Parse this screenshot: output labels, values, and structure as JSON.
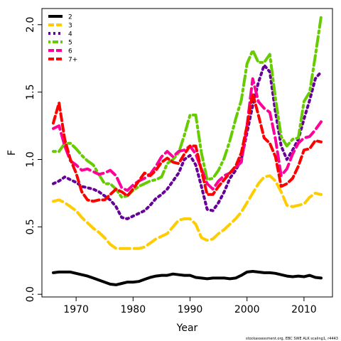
{
  "chart_data": {
    "type": "line",
    "title": "",
    "xlabel": "Year",
    "ylabel": "F",
    "xlim": [
      1964,
      2015
    ],
    "ylim": [
      -0.02,
      2.12
    ],
    "xticks": [
      1970,
      1980,
      1990,
      2000,
      2010
    ],
    "yticks": [
      0.0,
      0.5,
      1.0,
      1.5,
      2.0
    ],
    "yticklabels": [
      "0.0",
      "0.5",
      "1.0",
      "1.5",
      "2.0"
    ],
    "grid": false,
    "legend_position": "top-left",
    "footer": "stockassessment.org, EBC SWE ALK scaling1, r4443",
    "x": [
      1966,
      1967,
      1968,
      1969,
      1970,
      1971,
      1972,
      1973,
      1974,
      1975,
      1976,
      1977,
      1978,
      1979,
      1980,
      1981,
      1982,
      1983,
      1984,
      1985,
      1986,
      1987,
      1988,
      1989,
      1990,
      1991,
      1992,
      1993,
      1994,
      1995,
      1996,
      1997,
      1998,
      1999,
      2000,
      2001,
      2002,
      2003,
      2004,
      2005,
      2006,
      2007,
      2008,
      2009,
      2010,
      2011,
      2012,
      2013
    ],
    "series": [
      {
        "name": "2",
        "color": "#000000",
        "dash": "solid",
        "values": [
          0.16,
          0.165,
          0.165,
          0.165,
          0.155,
          0.145,
          0.135,
          0.12,
          0.105,
          0.09,
          0.075,
          0.07,
          0.08,
          0.09,
          0.09,
          0.095,
          0.11,
          0.125,
          0.135,
          0.14,
          0.14,
          0.15,
          0.145,
          0.14,
          0.14,
          0.125,
          0.12,
          0.115,
          0.12,
          0.12,
          0.12,
          0.115,
          0.12,
          0.14,
          0.165,
          0.17,
          0.165,
          0.16,
          0.16,
          0.155,
          0.145,
          0.135,
          0.13,
          0.135,
          0.13,
          0.14,
          0.125,
          0.12
        ]
      },
      {
        "name": "3",
        "color": "#ffcc00",
        "dash": "long",
        "values": [
          0.69,
          0.7,
          0.68,
          0.65,
          0.62,
          0.57,
          0.53,
          0.49,
          0.46,
          0.42,
          0.37,
          0.34,
          0.34,
          0.34,
          0.34,
          0.34,
          0.35,
          0.38,
          0.41,
          0.43,
          0.45,
          0.5,
          0.55,
          0.56,
          0.56,
          0.52,
          0.42,
          0.4,
          0.41,
          0.45,
          0.48,
          0.52,
          0.56,
          0.61,
          0.68,
          0.75,
          0.82,
          0.87,
          0.88,
          0.84,
          0.76,
          0.66,
          0.65,
          0.66,
          0.67,
          0.72,
          0.75,
          0.74
        ]
      },
      {
        "name": "4",
        "color": "#660099",
        "dash": "dotted",
        "values": [
          0.82,
          0.84,
          0.87,
          0.85,
          0.83,
          0.8,
          0.79,
          0.78,
          0.76,
          0.73,
          0.7,
          0.65,
          0.57,
          0.56,
          0.58,
          0.6,
          0.62,
          0.66,
          0.71,
          0.74,
          0.78,
          0.84,
          0.9,
          1.0,
          1.03,
          0.96,
          0.8,
          0.63,
          0.62,
          0.68,
          0.76,
          0.86,
          0.92,
          1.0,
          1.2,
          1.4,
          1.57,
          1.7,
          1.65,
          1.35,
          1.1,
          1.0,
          1.07,
          1.15,
          1.3,
          1.44,
          1.6,
          1.65
        ]
      },
      {
        "name": "5",
        "color": "#66cc00",
        "dash": "dotdash",
        "values": [
          1.06,
          1.06,
          1.12,
          1.12,
          1.08,
          1.03,
          0.99,
          0.96,
          0.89,
          0.82,
          0.82,
          0.78,
          0.72,
          0.73,
          0.77,
          0.8,
          0.82,
          0.84,
          0.85,
          0.87,
          0.97,
          1.0,
          1.05,
          1.18,
          1.33,
          1.33,
          1.05,
          0.85,
          0.86,
          0.92,
          1.01,
          1.14,
          1.3,
          1.44,
          1.71,
          1.81,
          1.72,
          1.72,
          1.78,
          1.45,
          1.17,
          1.1,
          1.15,
          1.16,
          1.43,
          1.5,
          1.77,
          2.06
        ]
      },
      {
        "name": "6",
        "color": "#ff0099",
        "dash": "long",
        "values": [
          1.23,
          1.25,
          1.1,
          0.99,
          0.96,
          0.92,
          0.93,
          0.91,
          0.89,
          0.9,
          0.92,
          0.88,
          0.79,
          0.77,
          0.81,
          0.84,
          0.86,
          0.89,
          0.95,
          1.02,
          1.06,
          1.02,
          1.06,
          1.07,
          1.1,
          1.04,
          0.93,
          0.82,
          0.78,
          0.84,
          0.88,
          0.9,
          0.94,
          0.98,
          1.25,
          1.6,
          1.43,
          1.38,
          1.35,
          1.15,
          0.88,
          0.93,
          1.04,
          1.12,
          1.16,
          1.17,
          1.22,
          1.28
        ]
      },
      {
        "name": "7+",
        "color": "#ff0000",
        "dash": "dashed",
        "values": [
          1.27,
          1.42,
          1.15,
          1.0,
          0.9,
          0.76,
          0.7,
          0.69,
          0.7,
          0.7,
          0.74,
          0.78,
          0.76,
          0.73,
          0.78,
          0.84,
          0.9,
          0.88,
          0.92,
          0.98,
          1.01,
          0.98,
          0.97,
          1.04,
          1.1,
          1.1,
          0.92,
          0.74,
          0.74,
          0.8,
          0.85,
          0.9,
          0.95,
          1.05,
          1.25,
          1.49,
          1.33,
          1.16,
          1.12,
          1.02,
          0.8,
          0.82,
          0.86,
          0.95,
          1.07,
          1.08,
          1.14,
          1.13
        ]
      }
    ]
  }
}
